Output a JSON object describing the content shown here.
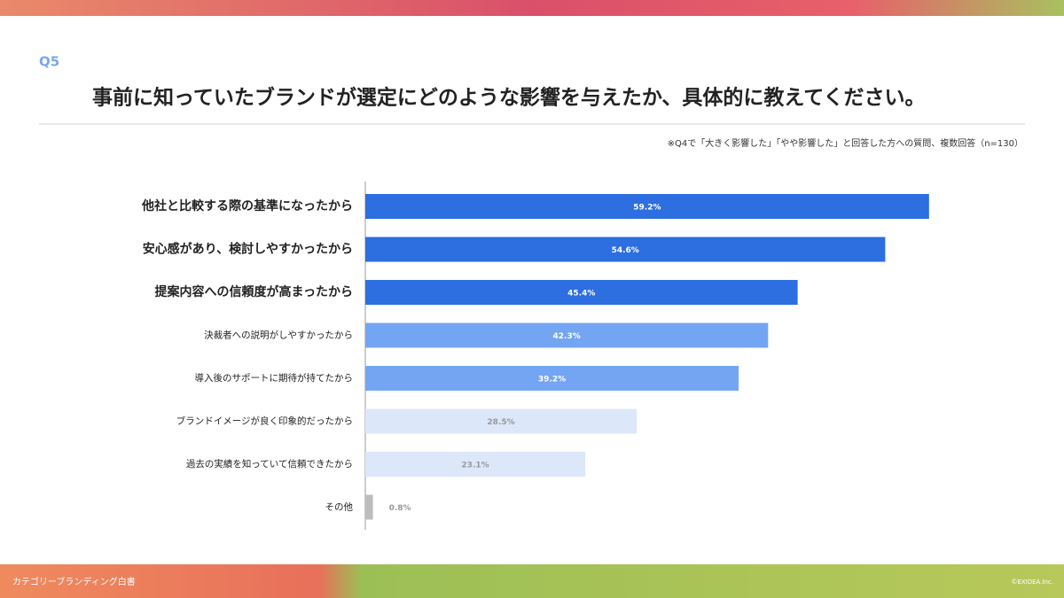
{
  "header": {
    "question": "Q5",
    "title": "事前に知っていたブランドが選定にどのような影響を与えたか、具体的に教えてください。",
    "note": "※Q4で「大きく影響した」「やや影響した」と回答した方への質問、複数回答（n=130）"
  },
  "chart_data": {
    "type": "bar",
    "orientation": "horizontal",
    "categories": [
      "他社と比較する際の基準になったから",
      "安心感があり、検討しやすかったから",
      "提案内容への信頼度が高まったから",
      "決裁者への説明がしやすかったから",
      "導入後のサポートに期待が持てたから",
      "ブランドイメージが良く印象的だったから",
      "過去の実績を知っていて信頼できたから",
      "その他"
    ],
    "values": [
      59.2,
      54.6,
      45.4,
      42.3,
      39.2,
      28.5,
      23.1,
      0.8
    ],
    "value_labels": [
      "59.2%",
      "54.6%",
      "45.4%",
      "42.3%",
      "39.2%",
      "28.5%",
      "23.1%",
      "0.8%"
    ],
    "colors": [
      "#2d6ee0",
      "#2d6ee0",
      "#2d6ee0",
      "#74a5f3",
      "#74a5f3",
      "#dce7fa",
      "#dce7fa",
      "#bdbdbd"
    ]
  },
  "footer": {
    "left": "カテゴリーブランディング白書",
    "right": "©EXIDEA.Inc."
  }
}
